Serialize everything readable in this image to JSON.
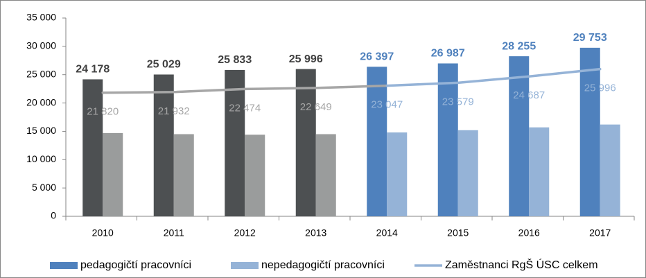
{
  "chart_data": {
    "type": "bar",
    "categories": [
      "2010",
      "2011",
      "2012",
      "2013",
      "2014",
      "2015",
      "2016",
      "2017"
    ],
    "series": [
      {
        "name": "pedagogičtí pracovníci",
        "type": "bar",
        "color": "#4f81bd",
        "colors": [
          "#4d5052",
          "#4d5052",
          "#4d5052",
          "#4d5052",
          "#4f81bd",
          "#4f81bd",
          "#4f81bd",
          "#4f81bd"
        ],
        "label_colors": [
          "#404040",
          "#404040",
          "#404040",
          "#404040",
          "#4f81bd",
          "#4f81bd",
          "#4f81bd",
          "#4f81bd"
        ],
        "values": [
          24178,
          25029,
          25833,
          25996,
          26397,
          26987,
          28255,
          29753
        ],
        "value_labels": [
          "24 178",
          "25 029",
          "25 833",
          "25 996",
          "26 397",
          "26 987",
          "28 255",
          "29 753"
        ]
      },
      {
        "name": "nepedagogičtí pracovníci",
        "type": "bar",
        "color": "#95b3d7",
        "colors": [
          "#9a9c9c",
          "#9a9c9c",
          "#9a9c9c",
          "#9a9c9c",
          "#95b3d7",
          "#95b3d7",
          "#95b3d7",
          "#95b3d7"
        ],
        "values": [
          14700,
          14500,
          14400,
          14500,
          14800,
          15200,
          15700,
          16200
        ]
      },
      {
        "name": "Zaměstnanci RgŠ ÚSC celkem",
        "type": "line",
        "color": "#95b3d7",
        "colors": [
          "#a6a6a6",
          "#a6a6a6",
          "#a6a6a6",
          "#a6a6a6",
          "#95b3d7",
          "#95b3d7",
          "#95b3d7",
          "#95b3d7"
        ],
        "values": [
          21820,
          21932,
          22474,
          22649,
          23047,
          23579,
          24687,
          25996
        ],
        "value_labels": [
          "21 820",
          "21 932",
          "22 474",
          "22 649",
          "23 047",
          "23 579",
          "24 687",
          "25 996"
        ]
      }
    ],
    "ylim": [
      0,
      35000
    ],
    "yticks": [
      0,
      {
        "value": 5000,
        "label": "5 000"
      },
      {
        "value": 10000,
        "label": "10 000"
      },
      {
        "value": 15000,
        "label": "15 000"
      },
      {
        "value": 20000,
        "label": "20 000"
      },
      {
        "value": 25000,
        "label": "25 000"
      },
      {
        "value": 30000,
        "label": "30 000"
      },
      {
        "value": 35000,
        "label": "35 000"
      }
    ],
    "grid": false,
    "legend": "bottom"
  }
}
